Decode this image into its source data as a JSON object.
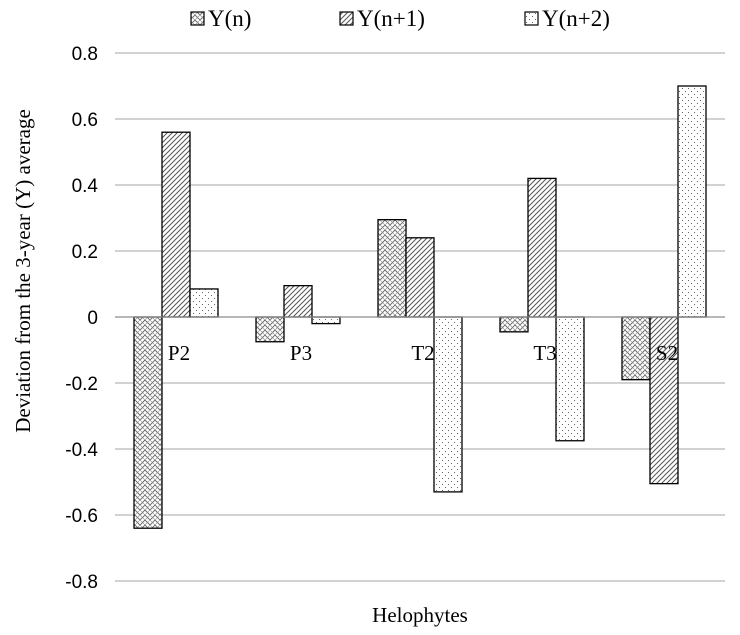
{
  "chart_data": {
    "type": "bar",
    "xlabel": "Helophytes",
    "ylabel": "Deviation from the 3-year (Y) average",
    "ylim": [
      -0.8,
      0.8
    ],
    "yticks": [
      0.8,
      0.6,
      0.4,
      0.2,
      0,
      -0.2,
      -0.4,
      -0.6,
      -0.8
    ],
    "ytick_labels": [
      "0.8",
      "0.6",
      "0.4",
      "0.2",
      "0",
      "-0.2",
      "-0.4",
      "-0.6",
      "-0.8"
    ],
    "grid": true,
    "legend_position": "top",
    "categories": [
      "P2",
      "P3",
      "T2",
      "T3",
      "S2"
    ],
    "series": [
      {
        "name": "Y(n)",
        "pattern": "crosshatch",
        "values": [
          -0.64,
          -0.075,
          0.295,
          -0.045,
          -0.19
        ]
      },
      {
        "name": "Y(n+1)",
        "pattern": "diagonal",
        "values": [
          0.56,
          0.095,
          0.24,
          0.42,
          -0.505
        ]
      },
      {
        "name": "Y(n+2)",
        "pattern": "dotted",
        "values": [
          0.085,
          -0.02,
          -0.53,
          -0.375,
          0.7
        ]
      }
    ]
  }
}
